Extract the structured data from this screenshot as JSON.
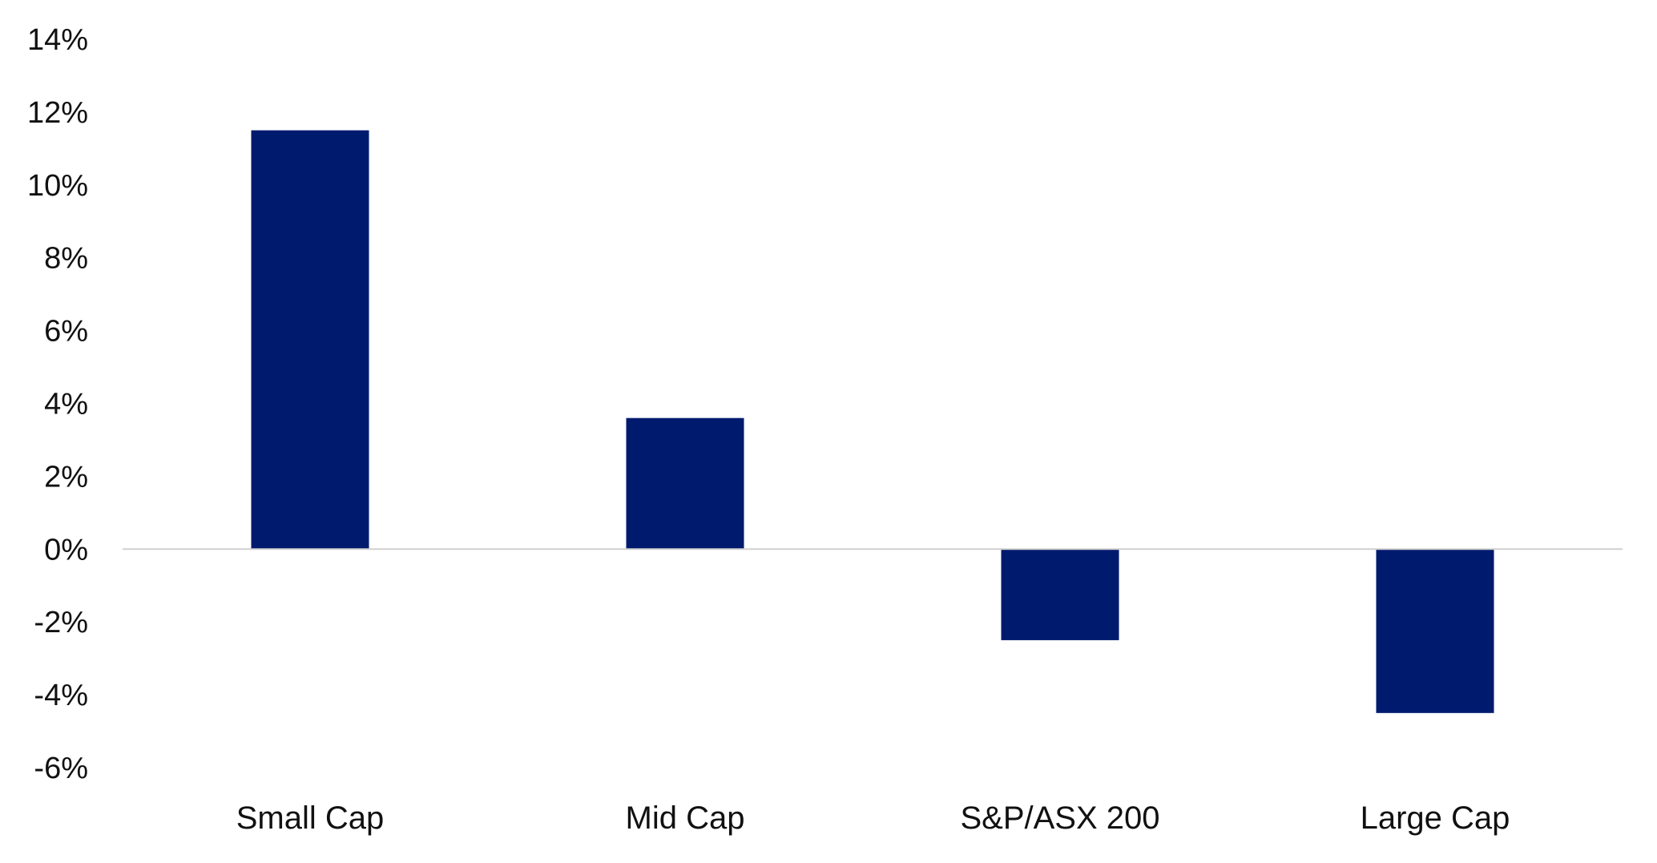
{
  "chart_data": {
    "type": "bar",
    "title": "",
    "xlabel": "",
    "ylabel": "",
    "categories": [
      "Small Cap",
      "Mid Cap",
      "S&P/ASX 200",
      "Large Cap"
    ],
    "values": [
      11.5,
      3.6,
      -2.5,
      -4.5
    ],
    "value_unit": "%",
    "ylim": [
      -6,
      14
    ],
    "yticks": [
      14,
      12,
      10,
      8,
      6,
      4,
      2,
      0,
      -2,
      -4,
      -6
    ],
    "ytick_labels": [
      "14%",
      "12%",
      "10%",
      "8%",
      "6%",
      "4%",
      "2%",
      "0%",
      "-2%",
      "-4%",
      "-6%"
    ],
    "grid": false,
    "legend": "none",
    "bar_color": "#001A6E",
    "zero_line_color": "#D0D0D0"
  }
}
